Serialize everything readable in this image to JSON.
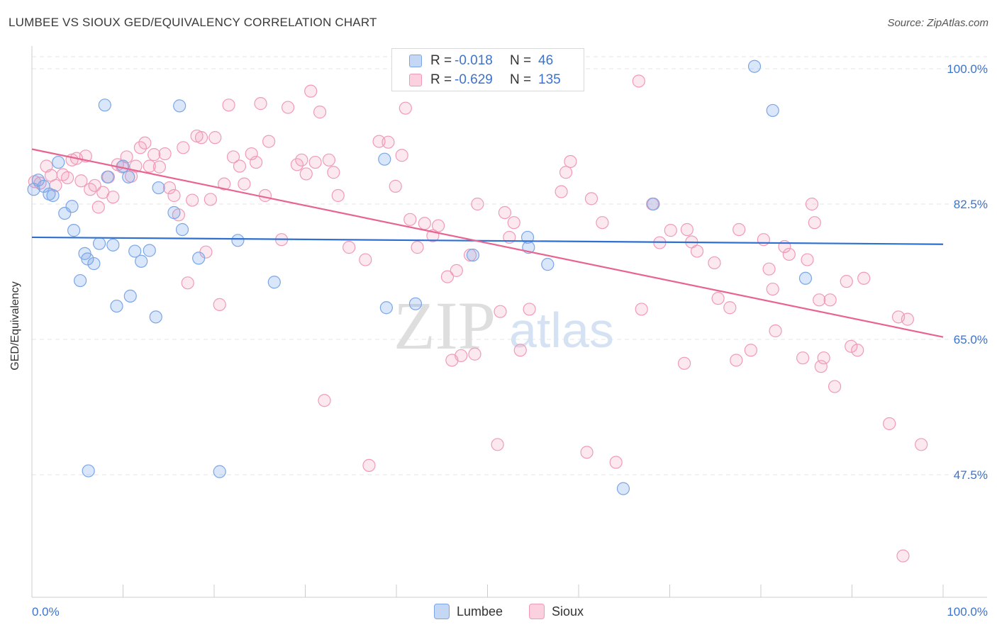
{
  "title": "LUMBEE VS SIOUX GED/EQUIVALENCY CORRELATION CHART",
  "source": "Source: ZipAtlas.com",
  "colors": {
    "lumbee": "#7aa6e8",
    "lumbee_line": "#2f6fd0",
    "sioux": "#f09ab8",
    "sioux_line": "#e8648f",
    "tick_text": "#3f73c9",
    "grid": "#e5e5e5"
  },
  "legend": {
    "rows": [
      {
        "r_label": "R =",
        "r_value": "-0.018",
        "n_label": "N =",
        "n_value": "46"
      },
      {
        "r_label": "R =",
        "r_value": "-0.629",
        "n_label": "N =",
        "n_value": "135"
      }
    ]
  },
  "bottom_legend": {
    "lumbee": "Lumbee",
    "sioux": "Sioux"
  },
  "watermark": {
    "zip": "ZIP",
    "atlas": "atlas"
  },
  "chart_data": {
    "type": "scatter",
    "title": "LUMBEE VS SIOUX GED/EQUIVALENCY CORRELATION CHART",
    "ylabel": "GED/Equivalency",
    "xlabel": "",
    "x_tick_labels": [
      "0.0%",
      "100.0%"
    ],
    "y_tick_labels": [
      "100.0%",
      "82.5%",
      "65.0%",
      "47.5%"
    ],
    "y_ticks": [
      100.0,
      82.5,
      65.0,
      47.5
    ],
    "xlim": [
      0,
      100
    ],
    "ylim": [
      35,
      102
    ],
    "grid": true,
    "legend_position": "top-center",
    "series": [
      {
        "name": "Lumbee",
        "r": -0.018,
        "n": 46,
        "trend": {
          "x": [
            0,
            100
          ],
          "y": [
            78.2,
            77.3
          ]
        },
        "points": [
          [
            0.2,
            84.4
          ],
          [
            0.7,
            85.6
          ],
          [
            1.3,
            84.8
          ],
          [
            1.9,
            83.8
          ],
          [
            2.3,
            83.6
          ],
          [
            2.9,
            87.9
          ],
          [
            3.6,
            81.3
          ],
          [
            4.4,
            82.2
          ],
          [
            4.6,
            79.1
          ],
          [
            5.3,
            72.6
          ],
          [
            5.8,
            76.1
          ],
          [
            6.1,
            75.4
          ],
          [
            6.8,
            74.8
          ],
          [
            7.4,
            77.4
          ],
          [
            8.0,
            95.3
          ],
          [
            8.3,
            86.0
          ],
          [
            8.9,
            77.2
          ],
          [
            9.3,
            69.3
          ],
          [
            10.0,
            87.4
          ],
          [
            10.6,
            86.0
          ],
          [
            10.8,
            70.6
          ],
          [
            11.3,
            76.4
          ],
          [
            12.0,
            75.1
          ],
          [
            12.9,
            76.5
          ],
          [
            13.6,
            67.9
          ],
          [
            13.9,
            84.6
          ],
          [
            15.6,
            81.4
          ],
          [
            16.5,
            79.2
          ],
          [
            16.2,
            95.2
          ],
          [
            18.3,
            75.5
          ],
          [
            22.6,
            77.8
          ],
          [
            26.6,
            72.4
          ],
          [
            38.7,
            88.3
          ],
          [
            38.9,
            69.1
          ],
          [
            42.1,
            69.6
          ],
          [
            48.4,
            75.9
          ],
          [
            54.4,
            78.2
          ],
          [
            54.5,
            76.9
          ],
          [
            56.6,
            74.7
          ],
          [
            64.9,
            45.7
          ],
          [
            68.2,
            82.5
          ],
          [
            79.3,
            100.3
          ],
          [
            81.3,
            94.6
          ],
          [
            84.9,
            72.9
          ],
          [
            6.2,
            48.0
          ],
          [
            20.6,
            47.9
          ]
        ]
      },
      {
        "name": "Sioux",
        "r": -0.629,
        "n": 135,
        "trend": {
          "x": [
            0,
            100
          ],
          "y": [
            89.6,
            65.3
          ]
        },
        "points": [
          [
            0.3,
            85.4
          ],
          [
            0.9,
            85.2
          ],
          [
            1.6,
            87.4
          ],
          [
            2.1,
            86.2
          ],
          [
            2.6,
            84.9
          ],
          [
            3.4,
            86.3
          ],
          [
            3.9,
            85.9
          ],
          [
            4.4,
            88.2
          ],
          [
            4.9,
            88.4
          ],
          [
            5.4,
            85.5
          ],
          [
            5.9,
            88.7
          ],
          [
            6.4,
            84.4
          ],
          [
            6.9,
            84.9
          ],
          [
            7.3,
            82.1
          ],
          [
            7.8,
            84.0
          ],
          [
            8.4,
            86.0
          ],
          [
            8.9,
            83.4
          ],
          [
            9.4,
            87.6
          ],
          [
            9.9,
            87.3
          ],
          [
            10.4,
            88.6
          ],
          [
            10.9,
            86.1
          ],
          [
            11.4,
            87.4
          ],
          [
            11.9,
            89.8
          ],
          [
            12.4,
            90.4
          ],
          [
            12.9,
            87.4
          ],
          [
            13.4,
            88.9
          ],
          [
            14.0,
            87.3
          ],
          [
            14.6,
            89.0
          ],
          [
            15.1,
            84.6
          ],
          [
            15.6,
            83.6
          ],
          [
            16.1,
            81.1
          ],
          [
            16.6,
            89.8
          ],
          [
            17.1,
            72.3
          ],
          [
            17.6,
            83.0
          ],
          [
            18.1,
            91.3
          ],
          [
            18.6,
            91.1
          ],
          [
            19.1,
            76.3
          ],
          [
            19.6,
            83.1
          ],
          [
            20.1,
            91.1
          ],
          [
            20.6,
            69.5
          ],
          [
            21.1,
            85.1
          ],
          [
            21.6,
            95.3
          ],
          [
            22.1,
            88.6
          ],
          [
            22.8,
            87.4
          ],
          [
            23.3,
            85.1
          ],
          [
            24.1,
            89.0
          ],
          [
            24.6,
            87.9
          ],
          [
            25.1,
            95.5
          ],
          [
            25.6,
            83.6
          ],
          [
            26.0,
            90.6
          ],
          [
            27.4,
            77.9
          ],
          [
            28.1,
            95.0
          ],
          [
            29.1,
            87.6
          ],
          [
            29.6,
            88.2
          ],
          [
            30.1,
            86.4
          ],
          [
            30.6,
            97.1
          ],
          [
            31.1,
            87.9
          ],
          [
            31.6,
            94.4
          ],
          [
            32.1,
            57.1
          ],
          [
            32.6,
            88.2
          ],
          [
            33.1,
            86.6
          ],
          [
            33.6,
            83.6
          ],
          [
            34.8,
            76.9
          ],
          [
            36.6,
            75.3
          ],
          [
            38.1,
            90.6
          ],
          [
            39.1,
            90.5
          ],
          [
            39.9,
            84.8
          ],
          [
            40.6,
            88.8
          ],
          [
            41.0,
            94.9
          ],
          [
            41.5,
            80.5
          ],
          [
            42.3,
            76.9
          ],
          [
            43.1,
            80.0
          ],
          [
            44.0,
            78.4
          ],
          [
            44.6,
            79.7
          ],
          [
            45.6,
            73.1
          ],
          [
            46.1,
            62.3
          ],
          [
            46.6,
            73.9
          ],
          [
            47.1,
            62.9
          ],
          [
            48.1,
            75.9
          ],
          [
            48.6,
            63.1
          ],
          [
            48.9,
            82.5
          ],
          [
            51.1,
            51.4
          ],
          [
            51.4,
            68.6
          ],
          [
            51.9,
            81.4
          ],
          [
            52.4,
            78.2
          ],
          [
            52.9,
            80.1
          ],
          [
            53.6,
            63.6
          ],
          [
            54.6,
            68.9
          ],
          [
            58.1,
            84.1
          ],
          [
            58.6,
            86.6
          ],
          [
            59.1,
            88.0
          ],
          [
            60.9,
            50.4
          ],
          [
            61.4,
            83.2
          ],
          [
            62.6,
            80.1
          ],
          [
            64.1,
            49.1
          ],
          [
            66.6,
            98.4
          ],
          [
            66.9,
            68.9
          ],
          [
            68.1,
            82.5
          ],
          [
            68.9,
            77.5
          ],
          [
            70.1,
            79.1
          ],
          [
            71.6,
            61.9
          ],
          [
            71.9,
            79.2
          ],
          [
            72.4,
            77.6
          ],
          [
            73.0,
            76.4
          ],
          [
            74.9,
            74.9
          ],
          [
            75.3,
            70.3
          ],
          [
            76.6,
            69.1
          ],
          [
            77.3,
            62.3
          ],
          [
            77.6,
            79.2
          ],
          [
            78.9,
            63.6
          ],
          [
            80.3,
            77.9
          ],
          [
            80.9,
            74.1
          ],
          [
            81.3,
            71.5
          ],
          [
            81.6,
            66.1
          ],
          [
            82.6,
            77.0
          ],
          [
            83.1,
            76.0
          ],
          [
            84.6,
            62.6
          ],
          [
            85.1,
            75.3
          ],
          [
            85.6,
            82.5
          ],
          [
            85.9,
            80.1
          ],
          [
            86.6,
            61.5
          ],
          [
            86.9,
            62.6
          ],
          [
            87.6,
            70.1
          ],
          [
            88.1,
            58.9
          ],
          [
            89.4,
            72.5
          ],
          [
            89.9,
            64.1
          ],
          [
            90.6,
            63.6
          ],
          [
            91.3,
            72.9
          ],
          [
            94.1,
            54.1
          ],
          [
            95.1,
            67.9
          ],
          [
            95.6,
            37.0
          ],
          [
            96.1,
            67.6
          ],
          [
            97.6,
            51.4
          ],
          [
            37.0,
            48.7
          ],
          [
            86.4,
            70.1
          ]
        ]
      }
    ]
  }
}
